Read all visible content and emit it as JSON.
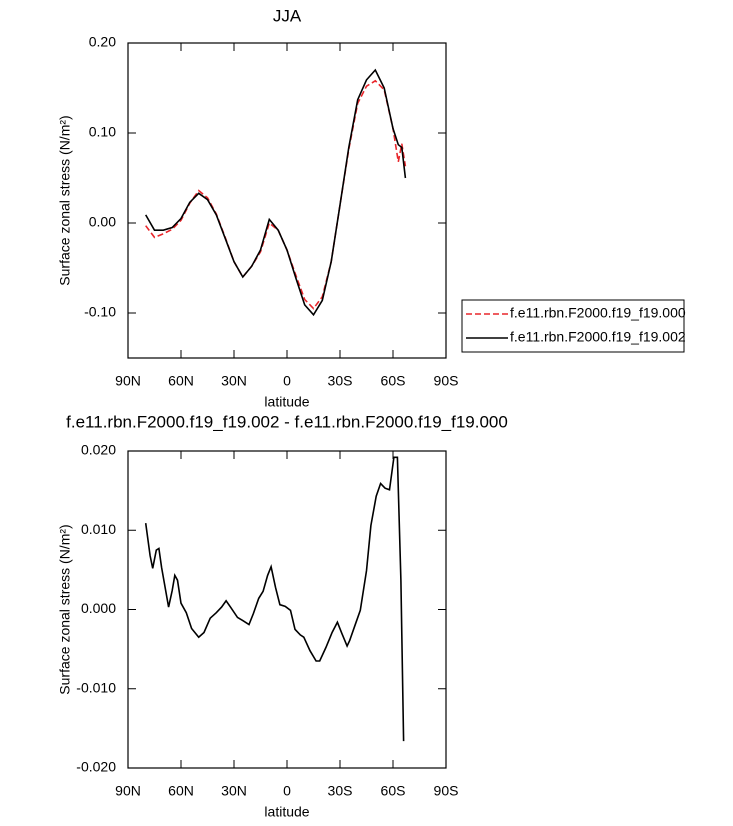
{
  "chart_data": [
    {
      "type": "line",
      "title": "JJA",
      "xlabel": "latitude",
      "ylabel": "Surface zonal stress (N/m²)",
      "x": [
        80,
        75,
        70,
        65,
        60,
        55,
        50,
        45,
        40,
        35,
        30,
        25,
        20,
        15,
        10,
        5,
        0,
        -5,
        -10,
        -15,
        -20,
        -25,
        -30,
        -35,
        -40,
        -45,
        -50,
        -55,
        -60,
        -63,
        -65,
        -67
      ],
      "series": [
        {
          "name": "f.e11.rbn.F2000.f19_f19.000",
          "color": "#e8262b",
          "dash": "dashed",
          "values": [
            -0.003,
            -0.016,
            -0.012,
            -0.007,
            0.003,
            0.022,
            0.036,
            0.028,
            0.01,
            -0.016,
            -0.043,
            -0.06,
            -0.048,
            -0.032,
            0.0,
            -0.008,
            -0.03,
            -0.058,
            -0.085,
            -0.095,
            -0.082,
            -0.043,
            0.02,
            0.082,
            0.133,
            0.152,
            0.158,
            0.148,
            0.105,
            0.068,
            0.088,
            0.063
          ]
        },
        {
          "name": "f.e11.rbn.F2000.f19_f19.002",
          "color": "#000000",
          "dash": "solid",
          "values": [
            0.009,
            -0.008,
            -0.008,
            -0.005,
            0.005,
            0.023,
            0.033,
            0.026,
            0.009,
            -0.017,
            -0.043,
            -0.06,
            -0.048,
            -0.03,
            0.004,
            -0.008,
            -0.03,
            -0.061,
            -0.091,
            -0.102,
            -0.086,
            -0.043,
            0.02,
            0.084,
            0.137,
            0.159,
            0.17,
            0.15,
            0.105,
            0.087,
            0.084,
            0.05
          ]
        }
      ],
      "xlim": [
        90,
        -90
      ],
      "xticks": [
        {
          "value": 90,
          "label": "90N"
        },
        {
          "value": 60,
          "label": "60N"
        },
        {
          "value": 30,
          "label": "30N"
        },
        0,
        {
          "value": -30,
          "label": "30S"
        },
        {
          "value": -60,
          "label": "60S"
        },
        {
          "value": -90,
          "label": "90S"
        }
      ],
      "ylim": [
        -0.15,
        0.2
      ],
      "yticks": [
        {
          "value": 0.2,
          "label": "0.20"
        },
        {
          "value": 0.1,
          "label": "0.10"
        },
        {
          "value": 0,
          "label": "0.00"
        },
        {
          "value": -0.1,
          "label": "-0.10"
        }
      ],
      "legend": "right"
    },
    {
      "type": "line",
      "title": "f.e11.rbn.F2000.f19_f19.002 - f.e11.rbn.F2000.f19_f19.000",
      "xlabel": "latitude",
      "ylabel": "Surface zonal stress (N/m²)",
      "x": [
        80,
        77.5,
        76,
        74,
        72.5,
        71,
        67,
        65,
        63.5,
        62,
        60,
        57,
        54,
        50,
        47,
        43.5,
        40,
        37,
        34.5,
        32,
        28,
        25,
        21.5,
        19,
        16,
        13.5,
        11,
        9,
        6.5,
        4,
        1,
        -2,
        -4.5,
        -7.5,
        -9.5,
        -13,
        -16.5,
        -18.5,
        -22,
        -25.5,
        -28.5,
        -31,
        -34,
        -35.5,
        -38.5,
        -41.5,
        -45,
        -47.5,
        -50.5,
        -53,
        -55.5,
        -58,
        -60.5,
        -62.5,
        -64.5,
        -66
      ],
      "series": [
        {
          "color": "#000000",
          "dash": "solid",
          "values": [
            0.0109,
            0.0068,
            0.0052,
            0.0075,
            0.0077,
            0.0053,
            0.0003,
            0.0024,
            0.0043,
            0.0037,
            0.0008,
            -0.0004,
            -0.0024,
            -0.0035,
            -0.0029,
            -0.0011,
            -0.0004,
            0.0003,
            0.0011,
            0.0003,
            -0.001,
            -0.0014,
            -0.0019,
            -0.0005,
            0.0014,
            0.0023,
            0.0043,
            0.0054,
            0.0028,
            0.0006,
            0.0004,
            -0.0001,
            -0.0025,
            -0.0032,
            -0.0035,
            -0.0052,
            -0.0065,
            -0.0065,
            -0.0048,
            -0.0029,
            -0.0016,
            -0.003,
            -0.0046,
            -0.0039,
            -0.002,
            -0.0001,
            0.0049,
            0.0106,
            0.0143,
            0.0159,
            0.0153,
            0.0151,
            0.0192,
            0.0192,
            0.0037,
            -0.0166
          ]
        }
      ],
      "xlim": [
        90,
        -90
      ],
      "xticks": [
        {
          "value": 90,
          "label": "90N"
        },
        {
          "value": 60,
          "label": "60N"
        },
        {
          "value": 30,
          "label": "30N"
        },
        0,
        {
          "value": -30,
          "label": "30S"
        },
        {
          "value": -60,
          "label": "60S"
        },
        {
          "value": -90,
          "label": "90S"
        }
      ],
      "ylim": [
        -0.02,
        0.02
      ],
      "yticks": [
        {
          "value": 0.02,
          "label": "0.020"
        },
        {
          "value": 0.01,
          "label": "0.010"
        },
        {
          "value": 0,
          "label": "0.000"
        },
        {
          "value": -0.01,
          "label": "-0.010"
        },
        {
          "value": -0.02,
          "label": "-0.020"
        }
      ]
    }
  ]
}
